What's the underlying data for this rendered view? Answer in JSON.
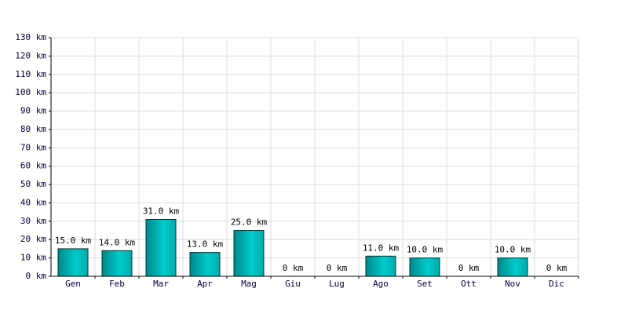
{
  "chart_data": {
    "type": "bar",
    "categories": [
      "Gen",
      "Feb",
      "Mar",
      "Apr",
      "Mag",
      "Giu",
      "Lug",
      "Ago",
      "Set",
      "Ott",
      "Nov",
      "Dic"
    ],
    "values": [
      15,
      14,
      31,
      13,
      25,
      0,
      0,
      11,
      10,
      0,
      10,
      0
    ],
    "value_labels": [
      "15.0 km",
      "14.0 km",
      "31.0 km",
      "13.0 km",
      "25.0 km",
      "0 km",
      "0 km",
      "11.0 km",
      "10.0 km",
      "0 km",
      "10.0 km",
      "0 km"
    ],
    "color": "#00cccc",
    "ylim": [
      0,
      130
    ],
    "yticks": [
      {
        "value": 0,
        "label": "0 km"
      },
      {
        "value": 10,
        "label": "10 km"
      },
      {
        "value": 20,
        "label": "20 km"
      },
      {
        "value": 30,
        "label": "30 km"
      },
      {
        "value": 40,
        "label": "40 km"
      },
      {
        "value": 50,
        "label": "50 km"
      },
      {
        "value": 60,
        "label": "60 km"
      },
      {
        "value": 70,
        "label": "70 km"
      },
      {
        "value": 80,
        "label": "80 km"
      },
      {
        "value": 90,
        "label": "90 km"
      },
      {
        "value": 100,
        "label": "100 km"
      },
      {
        "value": 110,
        "label": "110 km"
      },
      {
        "value": 120,
        "label": "120 km"
      },
      {
        "value": 130,
        "label": "130 km"
      }
    ],
    "grid": true
  }
}
